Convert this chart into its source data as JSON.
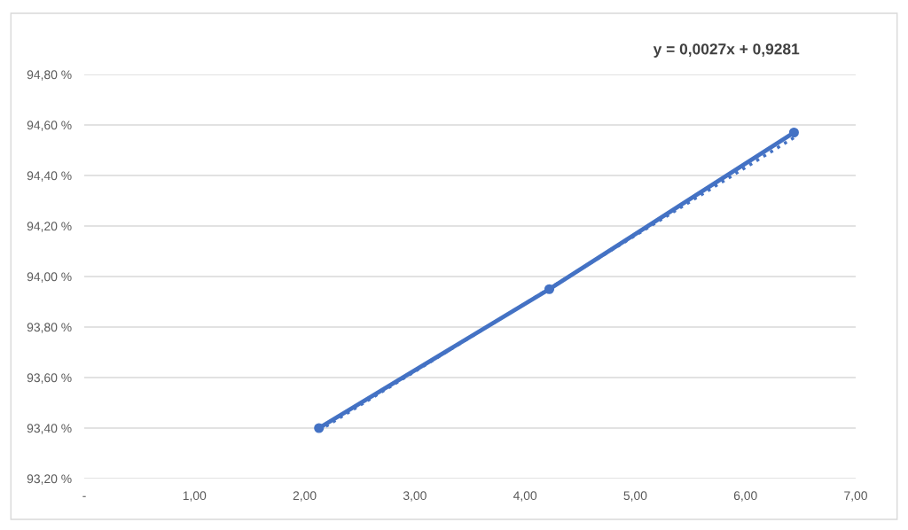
{
  "chart_data": {
    "type": "line",
    "annotations": [
      "y = 0,0027x + 0,9281"
    ],
    "series": [
      {
        "color": "#4472c4",
        "marker": "circle",
        "line_style": "solid",
        "x": [
          2.13,
          4.22,
          6.44
        ],
        "values": [
          93.4,
          93.95,
          94.57
        ]
      },
      {
        "type": "line",
        "color": "#4472c4",
        "marker": "none",
        "line_style": "dotted",
        "x": [
          2.13,
          6.44
        ],
        "values": [
          93.39,
          94.55
        ]
      }
    ],
    "xlim": [
      0,
      7
    ],
    "xticks": [
      {
        "value": 0,
        "label": "-"
      },
      {
        "value": 1,
        "label": "1,00"
      },
      {
        "value": 2,
        "label": "2,00"
      },
      {
        "value": 3,
        "label": "3,00"
      },
      {
        "value": 4,
        "label": "4,00"
      },
      {
        "value": 5,
        "label": "5,00"
      },
      {
        "value": 6,
        "label": "6,00"
      },
      {
        "value": 7,
        "label": "7,00"
      }
    ],
    "ylim": [
      93.2,
      94.8
    ],
    "yticks": [
      {
        "value": 93.2,
        "label": "93,20 %"
      },
      {
        "value": 93.4,
        "label": "93,40 %"
      },
      {
        "value": 93.6,
        "label": "93,60 %"
      },
      {
        "value": 93.8,
        "label": "93,80 %"
      },
      {
        "value": 94.0,
        "label": "94,00 %"
      },
      {
        "value": 94.2,
        "label": "94,20 %"
      },
      {
        "value": 94.4,
        "label": "94,40 %"
      },
      {
        "value": 94.6,
        "label": "94,60 %"
      },
      {
        "value": 94.8,
        "label": "94,80 %"
      }
    ],
    "grid": "y"
  }
}
